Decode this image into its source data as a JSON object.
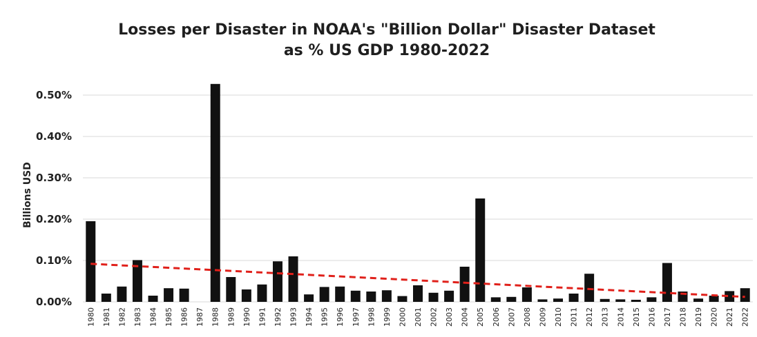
{
  "chart_data": {
    "type": "bar",
    "title_lines": [
      "Losses per Disaster in NOAA's \"Billion Dollar\" Disaster Dataset",
      "as % US GDP 1980-2022"
    ],
    "ylabel": "Billions USD",
    "xlabel": "",
    "ylim": [
      0,
      0.55
    ],
    "yticks": [
      0,
      0.1,
      0.2,
      0.3,
      0.4,
      0.5
    ],
    "ytick_labels": [
      "0.00%",
      "0.10%",
      "0.20%",
      "0.30%",
      "0.40%",
      "0.50%"
    ],
    "grid": true,
    "bar_color": "#111111",
    "trend_color": "#e0201a",
    "categories": [
      "1980",
      "1981",
      "1982",
      "1983",
      "1984",
      "1985",
      "1986",
      "1987",
      "1988",
      "1989",
      "1990",
      "1991",
      "1992",
      "1993",
      "1994",
      "1995",
      "1996",
      "1997",
      "1998",
      "1999",
      "2000",
      "2001",
      "2002",
      "2003",
      "2004",
      "2005",
      "2006",
      "2007",
      "2008",
      "2009",
      "2010",
      "2011",
      "2012",
      "2013",
      "2014",
      "2015",
      "2016",
      "2017",
      "2018",
      "2019",
      "2020",
      "2021",
      "2022"
    ],
    "values": [
      0.195,
      0.02,
      0.037,
      0.101,
      0.015,
      0.033,
      0.032,
      0.0,
      0.527,
      0.06,
      0.03,
      0.042,
      0.098,
      0.11,
      0.018,
      0.036,
      0.037,
      0.027,
      0.025,
      0.028,
      0.014,
      0.04,
      0.022,
      0.027,
      0.085,
      0.25,
      0.011,
      0.012,
      0.035,
      0.006,
      0.008,
      0.02,
      0.068,
      0.007,
      0.006,
      0.005,
      0.011,
      0.094,
      0.025,
      0.008,
      0.015,
      0.026,
      0.033
    ],
    "trendline": {
      "start": 0.092,
      "end": 0.012
    }
  }
}
